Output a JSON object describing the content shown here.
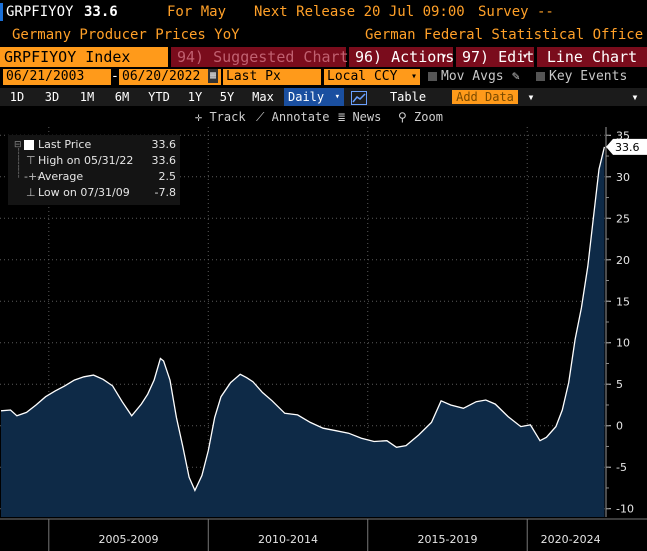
{
  "header": {
    "ticker": "GRPFIYOY",
    "last_value": "33.6",
    "for_label": "For May",
    "next_release": "Next Release 20 Jul 09:00",
    "survey": "Survey --",
    "description": "Germany Producer Prices YoY",
    "source": "German Federal Statistical Office"
  },
  "toolbar": {
    "security": "GRPFIYOY Index",
    "suggested_charts": "94) Suggested Charts",
    "actions": "96) Actions",
    "edit": "97) Edit",
    "chart_type": "Line Chart"
  },
  "range": {
    "start": "06/21/2003",
    "end": "06/20/2022",
    "field": "Last Px",
    "currency": "Local CCY",
    "mov_avgs": "Mov Avgs",
    "key_events": "Key Events"
  },
  "periods": {
    "items": [
      "1D",
      "3D",
      "1M",
      "6M",
      "YTD",
      "1Y",
      "5Y",
      "Max"
    ],
    "frequency": "Daily",
    "table": "Table",
    "add_data": "Add Data"
  },
  "tools": {
    "track": "Track",
    "annotate": "Annotate",
    "news": "News",
    "zoom": "Zoom"
  },
  "legend": {
    "last_label": "Last Price",
    "last_value": "33.6",
    "high_label": "High on 05/31/22",
    "high_value": "33.6",
    "avg_label": "Average",
    "avg_value": "2.5",
    "low_label": "Low on 07/31/09",
    "low_value": "-7.8"
  },
  "colors": {
    "accent": "#ffa028",
    "series_fill": "#0e2a47",
    "series_line": "#ffffff",
    "last_tag_bg": "#ffffff"
  },
  "chart_data": {
    "type": "area",
    "ylim": [
      -11,
      36
    ],
    "yticks": [
      -10,
      -5,
      0,
      5,
      10,
      15,
      20,
      25,
      30,
      35
    ],
    "xlim": [
      2003.47,
      2022.47
    ],
    "x_labels": [
      "2005-2009",
      "2010-2014",
      "2015-2019",
      "2020-2024"
    ],
    "last_tag": "33.6",
    "series": [
      {
        "x": [
          2003.5,
          2003.8,
          2004.0,
          2004.3,
          2004.6,
          2004.9,
          2005.2,
          2005.5,
          2005.8,
          2006.1,
          2006.4,
          2006.7,
          2007.0,
          2007.3,
          2007.6,
          2007.9,
          2008.1,
          2008.3,
          2008.5,
          2008.6,
          2008.8,
          2009.0,
          2009.2,
          2009.4,
          2009.58,
          2009.8,
          2010.0,
          2010.2,
          2010.4,
          2010.7,
          2011.0,
          2011.2,
          2011.4,
          2011.7,
          2012.0,
          2012.4,
          2012.8,
          2013.2,
          2013.6,
          2014.0,
          2014.4,
          2014.8,
          2015.2,
          2015.6,
          2015.9,
          2016.2,
          2016.6,
          2017.0,
          2017.3,
          2017.6,
          2018.0,
          2018.4,
          2018.7,
          2019.0,
          2019.4,
          2019.8,
          2020.1,
          2020.4,
          2020.6,
          2020.9,
          2021.1,
          2021.3,
          2021.5,
          2021.7,
          2021.9,
          2022.1,
          2022.25,
          2022.42
        ],
        "y": [
          1.8,
          1.9,
          1.2,
          1.6,
          2.5,
          3.5,
          4.2,
          4.8,
          5.5,
          5.9,
          6.1,
          5.6,
          4.8,
          2.9,
          1.2,
          2.6,
          3.8,
          5.5,
          8.1,
          7.8,
          5.5,
          1.0,
          -2.5,
          -6.2,
          -7.8,
          -6.0,
          -3.0,
          1.0,
          3.5,
          5.2,
          6.2,
          5.8,
          5.3,
          4.0,
          3.0,
          1.5,
          1.3,
          0.4,
          -0.3,
          -0.6,
          -0.9,
          -1.5,
          -1.9,
          -1.8,
          -2.6,
          -2.4,
          -1.1,
          0.4,
          3.0,
          2.5,
          2.1,
          2.9,
          3.1,
          2.6,
          1.1,
          -0.1,
          0.1,
          -1.8,
          -1.4,
          -0.1,
          1.9,
          5.2,
          10.4,
          14.2,
          19.2,
          25.9,
          30.9,
          33.6
        ]
      }
    ]
  }
}
